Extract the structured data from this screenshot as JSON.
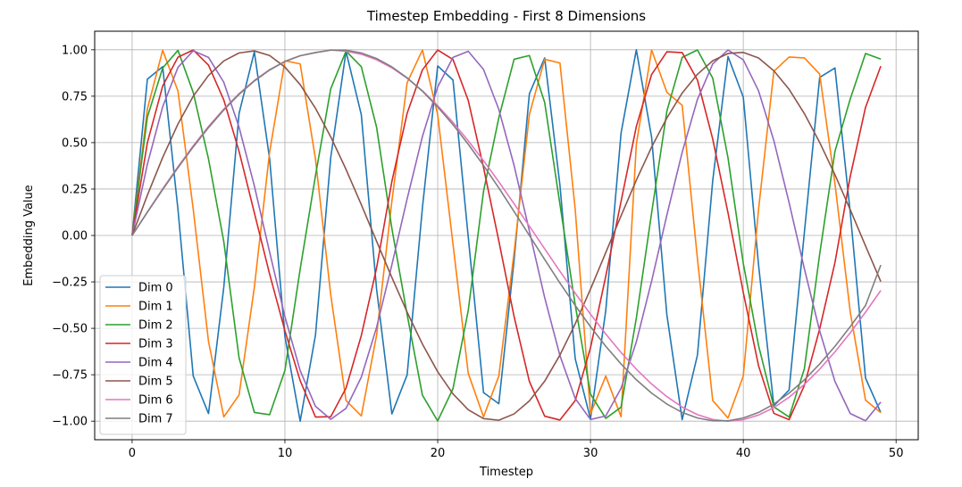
{
  "chart_data": {
    "type": "line",
    "title": "Timestep Embedding - First 8 Dimensions",
    "xlabel": "Timestep",
    "ylabel": "Embedding Value",
    "xlim": [
      -2.45,
      51.45
    ],
    "ylim": [
      -1.1,
      1.1
    ],
    "xticks": [
      0,
      10,
      20,
      30,
      40,
      50
    ],
    "yticks": [
      -1.0,
      -0.75,
      -0.5,
      -0.25,
      0.0,
      0.25,
      0.5,
      0.75,
      1.0
    ],
    "ytick_labels": [
      "−1.00",
      "−0.75",
      "−0.50",
      "−0.25",
      "0.00",
      "0.25",
      "0.50",
      "0.75",
      "1.00"
    ],
    "xtick_labels": [
      "0",
      "10",
      "20",
      "30",
      "40",
      "50"
    ],
    "grid": true,
    "legend_position": "lower-left",
    "x_start": 0,
    "x_end": 49,
    "series": [
      {
        "name": "Dim 0",
        "color": "#1f77b4",
        "values": [
          0.0,
          0.842,
          0.909,
          0.141,
          -0.757,
          -0.959,
          -0.279,
          0.657,
          0.989,
          0.412,
          -0.544,
          -1.0,
          -0.537,
          0.42,
          0.991,
          0.65,
          -0.288,
          -0.961,
          -0.751,
          0.15,
          0.913,
          0.837,
          -0.009,
          -0.846,
          -0.906,
          -0.132,
          0.763,
          0.956,
          0.271,
          -0.664,
          -0.988,
          -0.404,
          0.551,
          1.0,
          0.529,
          -0.428,
          -0.992,
          -0.644,
          0.296,
          0.964,
          0.745,
          -0.159,
          -0.917,
          -0.832,
          0.018,
          0.851,
          0.902,
          0.124,
          -0.768,
          -0.954
        ]
      },
      {
        "name": "Dim 1",
        "color": "#ff7f0e",
        "values": [
          0.0,
          0.682,
          0.997,
          0.778,
          0.141,
          -0.571,
          -0.977,
          -0.859,
          -0.279,
          0.45,
          0.941,
          0.924,
          0.412,
          -0.32,
          -0.889,
          -0.972,
          -0.537,
          0.184,
          0.823,
          0.999,
          0.65,
          -0.046,
          -0.743,
          -0.977,
          -0.757,
          -0.092,
          0.652,
          0.949,
          0.929,
          0.141,
          -0.961,
          -0.757,
          -0.976,
          0.491,
          0.999,
          0.771,
          0.701,
          -0.126,
          -0.889,
          -0.983,
          -0.757,
          0.141,
          0.884,
          0.961,
          0.956,
          0.869,
          0.279,
          -0.412,
          -0.887,
          -0.954
        ]
      },
      {
        "name": "Dim 2",
        "color": "#2ca02c",
        "values": [
          0.0,
          0.638,
          0.902,
          0.997,
          0.77,
          0.412,
          -0.033,
          -0.659,
          -0.953,
          -0.965,
          -0.727,
          -0.181,
          0.322,
          0.79,
          0.993,
          0.909,
          0.583,
          0.038,
          -0.426,
          -0.86,
          -0.999,
          -0.825,
          -0.403,
          0.238,
          0.634,
          0.949,
          0.969,
          0.717,
          0.168,
          -0.374,
          -0.854,
          -0.985,
          -0.925,
          -0.445,
          0.121,
          0.67,
          0.959,
          0.999,
          0.847,
          0.418,
          -0.15,
          -0.593,
          -0.923,
          -0.978,
          -0.717,
          -0.1,
          0.453,
          0.735,
          0.98,
          0.95
        ]
      },
      {
        "name": "Dim 3",
        "color": "#d62728",
        "values": [
          0.0,
          0.5,
          0.805,
          0.96,
          0.999,
          0.917,
          0.73,
          0.453,
          0.122,
          -0.208,
          -0.513,
          -0.782,
          -0.978,
          -0.976,
          -0.822,
          -0.539,
          -0.175,
          0.291,
          0.658,
          0.892,
          0.999,
          0.948,
          0.727,
          0.366,
          -0.029,
          -0.437,
          -0.786,
          -0.973,
          -0.994,
          -0.889,
          -0.605,
          -0.219,
          0.183,
          0.587,
          0.867,
          0.989,
          0.985,
          0.837,
          0.519,
          0.122,
          -0.307,
          -0.702,
          -0.958,
          -0.992,
          -0.807,
          -0.503,
          -0.146,
          0.318,
          0.69,
          0.912
        ]
      },
      {
        "name": "Dim 4",
        "color": "#9467bd",
        "values": [
          0.0,
          0.384,
          0.693,
          0.905,
          0.995,
          0.959,
          0.825,
          0.583,
          0.267,
          -0.09,
          -0.437,
          -0.728,
          -0.92,
          -0.99,
          -0.931,
          -0.763,
          -0.495,
          -0.158,
          0.197,
          0.533,
          0.8,
          0.959,
          0.992,
          0.894,
          0.679,
          0.377,
          0.024,
          -0.334,
          -0.647,
          -0.878,
          -0.991,
          -0.972,
          -0.823,
          -0.573,
          -0.246,
          0.11,
          0.448,
          0.733,
          0.924,
          0.999,
          0.946,
          0.779,
          0.511,
          0.176,
          -0.18,
          -0.514,
          -0.786,
          -0.959,
          -0.998,
          -0.897
        ]
      },
      {
        "name": "Dim 5",
        "color": "#8c564b",
        "values": [
          0.0,
          0.217,
          0.42,
          0.6,
          0.75,
          0.862,
          0.94,
          0.983,
          0.994,
          0.969,
          0.907,
          0.812,
          0.685,
          0.531,
          0.356,
          0.166,
          -0.031,
          -0.226,
          -0.413,
          -0.585,
          -0.734,
          -0.853,
          -0.939,
          -0.986,
          -0.995,
          -0.961,
          -0.891,
          -0.785,
          -0.644,
          -0.476,
          -0.289,
          -0.092,
          0.106,
          0.298,
          0.476,
          0.633,
          0.767,
          0.868,
          0.941,
          0.98,
          0.986,
          0.956,
          0.887,
          0.787,
          0.656,
          0.501,
          0.327,
          0.139,
          -0.056,
          -0.248
        ]
      },
      {
        "name": "Dim 6",
        "color": "#e377c2",
        "values": [
          0.0,
          0.127,
          0.251,
          0.37,
          0.483,
          0.587,
          0.681,
          0.764,
          0.835,
          0.893,
          0.937,
          0.968,
          0.985,
          0.999,
          0.992,
          0.976,
          0.946,
          0.903,
          0.847,
          0.779,
          0.699,
          0.609,
          0.51,
          0.403,
          0.289,
          0.171,
          0.05,
          -0.072,
          -0.193,
          -0.311,
          -0.424,
          -0.531,
          -0.63,
          -0.72,
          -0.8,
          -0.868,
          -0.924,
          -0.965,
          -0.991,
          -1.0,
          -0.992,
          -0.967,
          -0.927,
          -0.871,
          -0.802,
          -0.72,
          -0.627,
          -0.524,
          -0.413,
          -0.296
        ]
      },
      {
        "name": "Dim 7",
        "color": "#7f7f7f",
        "values": [
          0.0,
          0.125,
          0.247,
          0.365,
          0.477,
          0.581,
          0.676,
          0.76,
          0.832,
          0.891,
          0.937,
          0.968,
          0.985,
          0.998,
          0.998,
          0.983,
          0.953,
          0.908,
          0.849,
          0.777,
          0.692,
          0.597,
          0.491,
          0.377,
          0.256,
          0.129,
          0.0,
          -0.129,
          -0.256,
          -0.377,
          -0.491,
          -0.597,
          -0.692,
          -0.777,
          -0.849,
          -0.908,
          -0.953,
          -0.983,
          -0.998,
          -0.998,
          -0.983,
          -0.953,
          -0.908,
          -0.849,
          -0.777,
          -0.692,
          -0.597,
          -0.491,
          -0.377,
          -0.159
        ]
      }
    ]
  }
}
